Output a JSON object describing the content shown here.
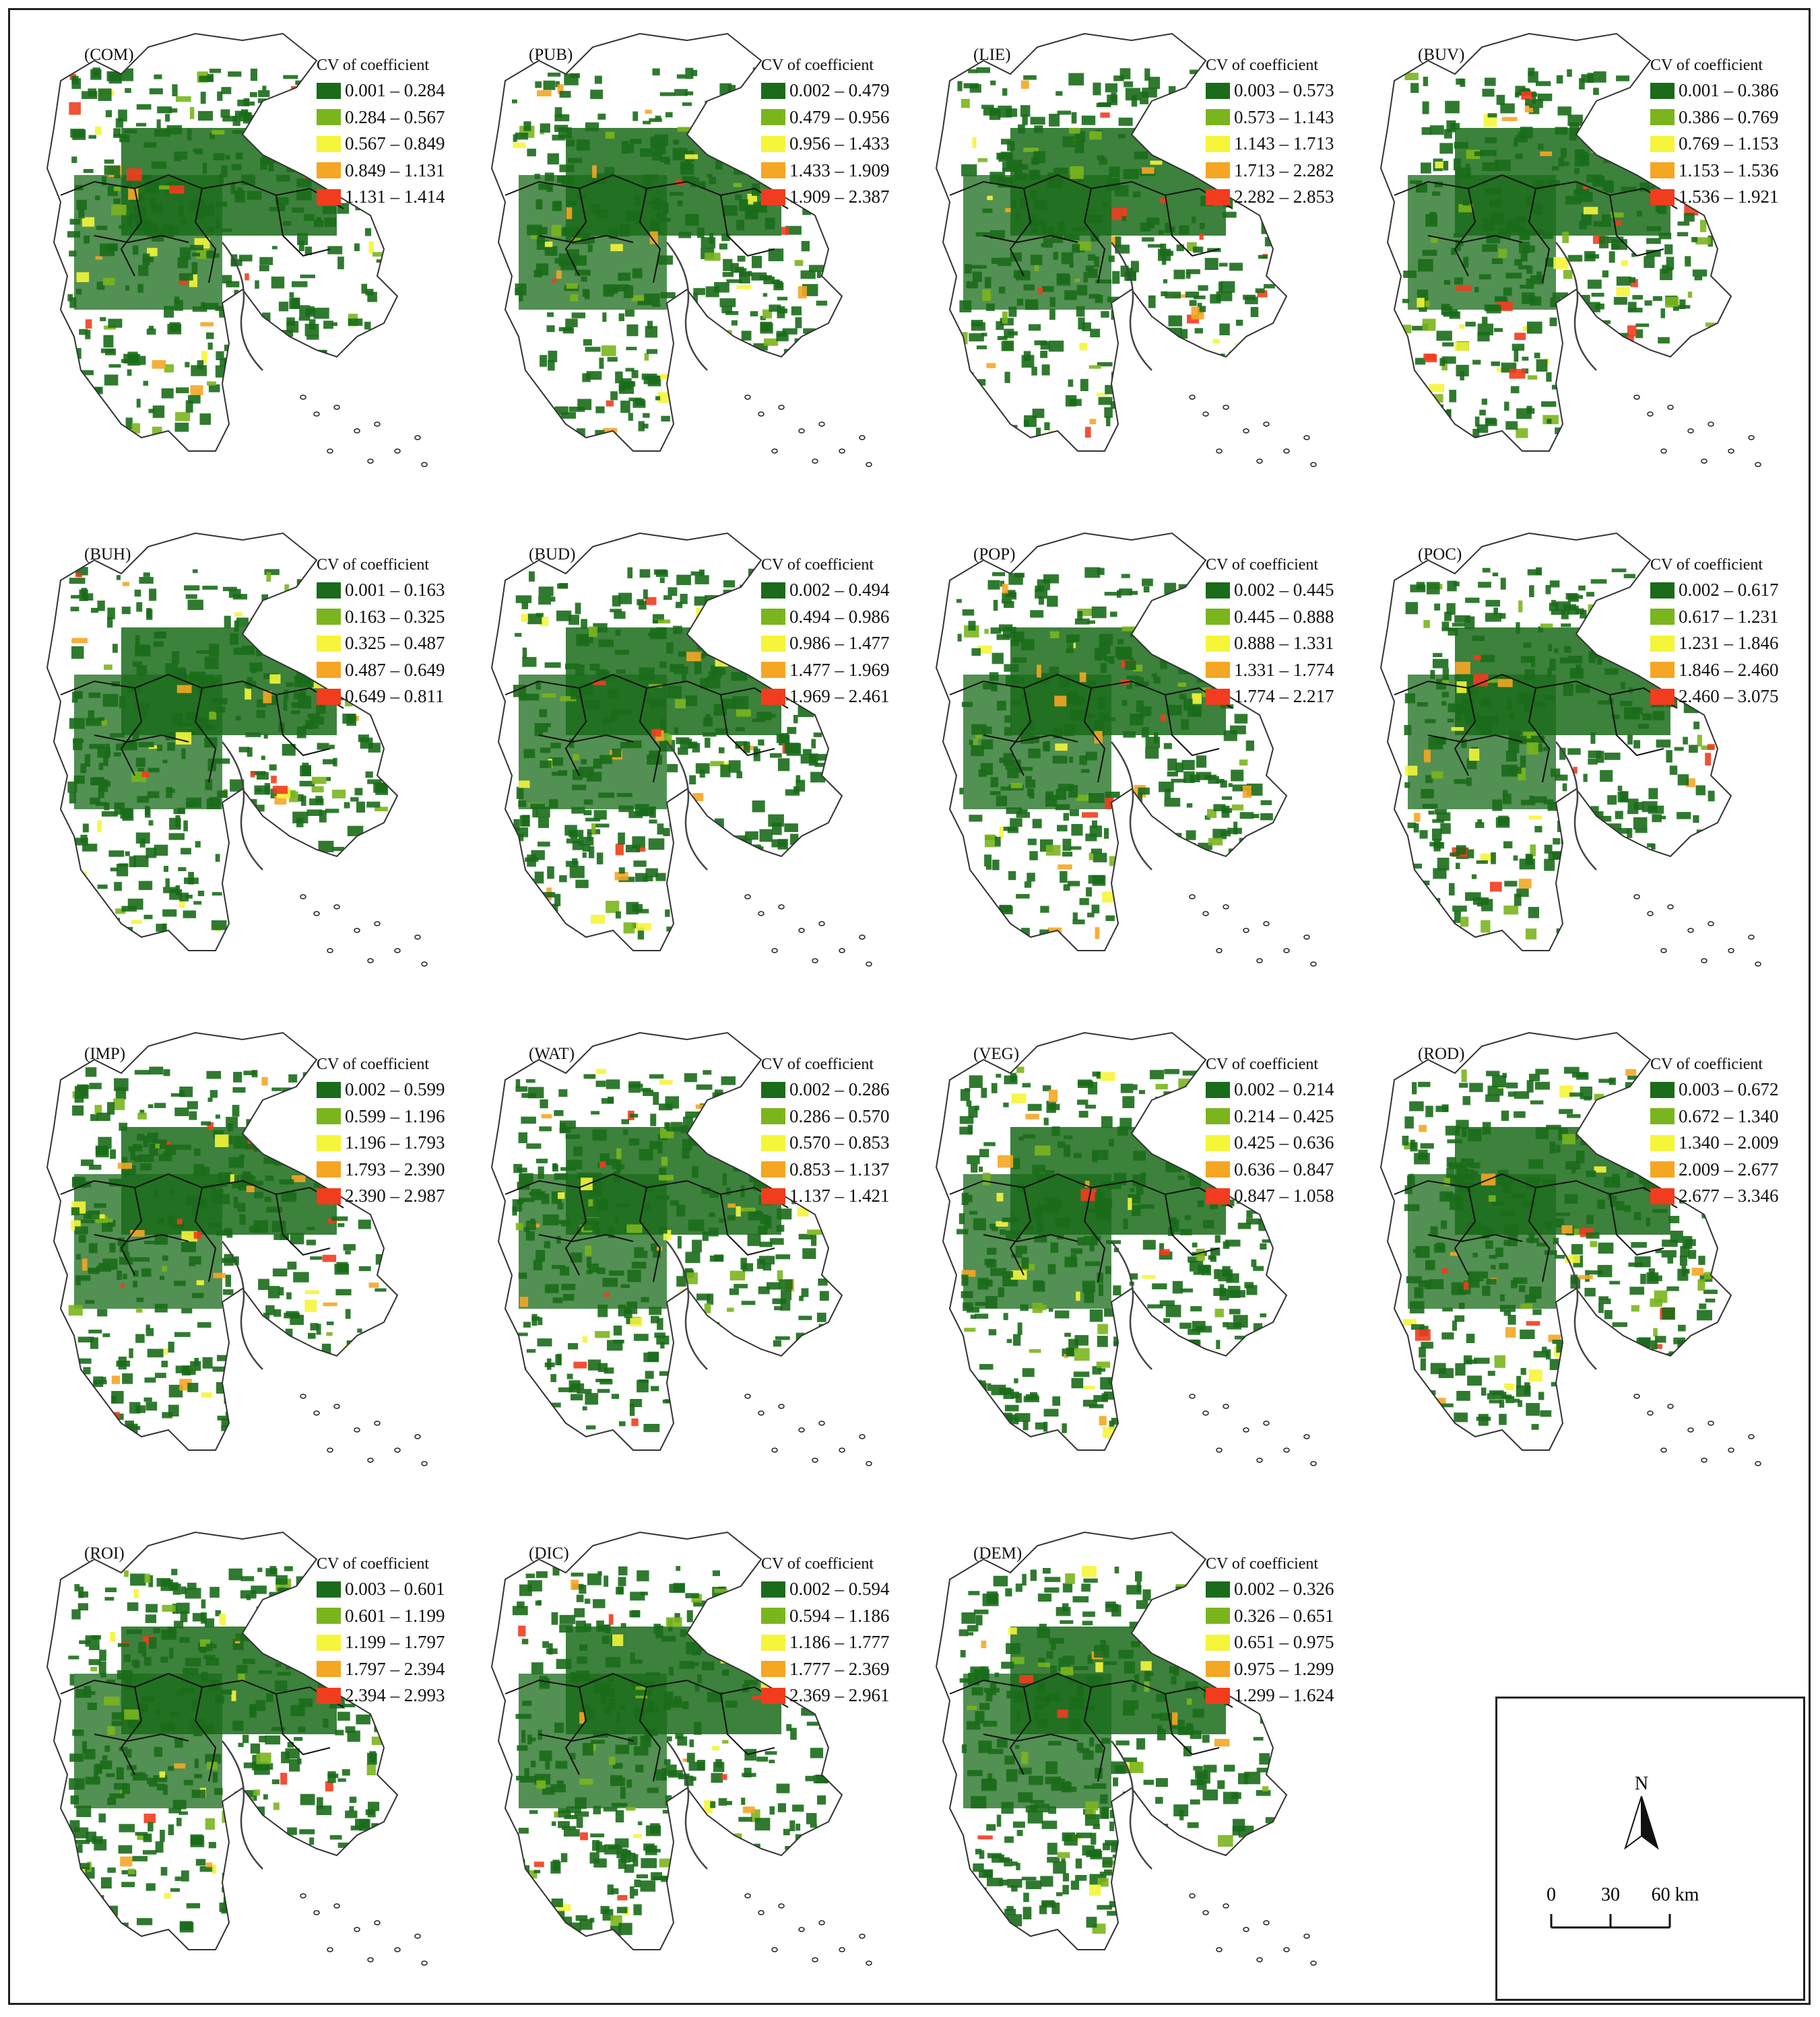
{
  "legend_title": "CV of coefficient",
  "colors": [
    "#1a6b1a",
    "#7ab51d",
    "#f5f53a",
    "#f5a623",
    "#f23c1e"
  ],
  "panels": [
    {
      "label": "(COM)",
      "classes": [
        "0.001 – 0.284",
        "0.284 – 0.567",
        "0.567 – 0.849",
        "0.849 – 1.131",
        "1.131 – 1.414"
      ]
    },
    {
      "label": "(PUB)",
      "classes": [
        "0.002 – 0.479",
        "0.479 – 0.956",
        "0.956 – 1.433",
        "1.433 – 1.909",
        "1.909 – 2.387"
      ]
    },
    {
      "label": "(LIE)",
      "classes": [
        "0.003 – 0.573",
        "0.573 – 1.143",
        "1.143 – 1.713",
        "1.713 – 2.282",
        "2.282 – 2.853"
      ]
    },
    {
      "label": "(BUV)",
      "classes": [
        "0.001 – 0.386",
        "0.386 – 0.769",
        "0.769 – 1.153",
        "1.153 – 1.536",
        "1.536 – 1.921"
      ]
    },
    {
      "label": "(BUH)",
      "classes": [
        "0.001 – 0.163",
        "0.163 – 0.325",
        "0.325 – 0.487",
        "0.487 – 0.649",
        "0.649 – 0.811"
      ]
    },
    {
      "label": "(BUD)",
      "classes": [
        "0.002 – 0.494",
        "0.494 – 0.986",
        "0.986 – 1.477",
        "1.477 – 1.969",
        "1.969 – 2.461"
      ]
    },
    {
      "label": "(POP)",
      "classes": [
        "0.002 – 0.445",
        "0.445 – 0.888",
        "0.888 – 1.331",
        "1.331 – 1.774",
        "1.774 – 2.217"
      ]
    },
    {
      "label": "(POC)",
      "classes": [
        "0.002 – 0.617",
        "0.617 – 1.231",
        "1.231 – 1.846",
        "1.846 – 2.460",
        "2.460 – 3.075"
      ]
    },
    {
      "label": "(IMP)",
      "classes": [
        "0.002 – 0.599",
        "0.599 – 1.196",
        "1.196 – 1.793",
        "1.793 – 2.390",
        "2.390 – 2.987"
      ]
    },
    {
      "label": "(WAT)",
      "classes": [
        "0.002 – 0.286",
        "0.286 – 0.570",
        "0.570 – 0.853",
        "0.853 – 1.137",
        "1.137 – 1.421"
      ]
    },
    {
      "label": "(VEG)",
      "classes": [
        "0.002 – 0.214",
        "0.214 – 0.425",
        "0.425 – 0.636",
        "0.636 – 0.847",
        "0.847 – 1.058"
      ]
    },
    {
      "label": "(ROD)",
      "classes": [
        "0.003 – 0.672",
        "0.672 – 1.340",
        "1.340 – 2.009",
        "2.009 – 2.677",
        "2.677 – 3.346"
      ]
    },
    {
      "label": "(ROI)",
      "classes": [
        "0.003 – 0.601",
        "0.601 – 1.199",
        "1.199 – 1.797",
        "1.797 – 2.394",
        "2.394 – 2.993"
      ]
    },
    {
      "label": "(DIC)",
      "classes": [
        "0.002 – 0.594",
        "0.594 – 1.186",
        "1.186 – 1.777",
        "1.777 – 2.369",
        "2.369 – 2.961"
      ]
    },
    {
      "label": "(DEM)",
      "classes": [
        "0.002 – 0.326",
        "0.326 – 0.651",
        "0.651 – 0.975",
        "0.975 – 1.299",
        "1.299 – 1.624"
      ]
    }
  ],
  "scale_bar": {
    "north": "N",
    "ticks": [
      "0",
      "30",
      "60 km"
    ]
  }
}
